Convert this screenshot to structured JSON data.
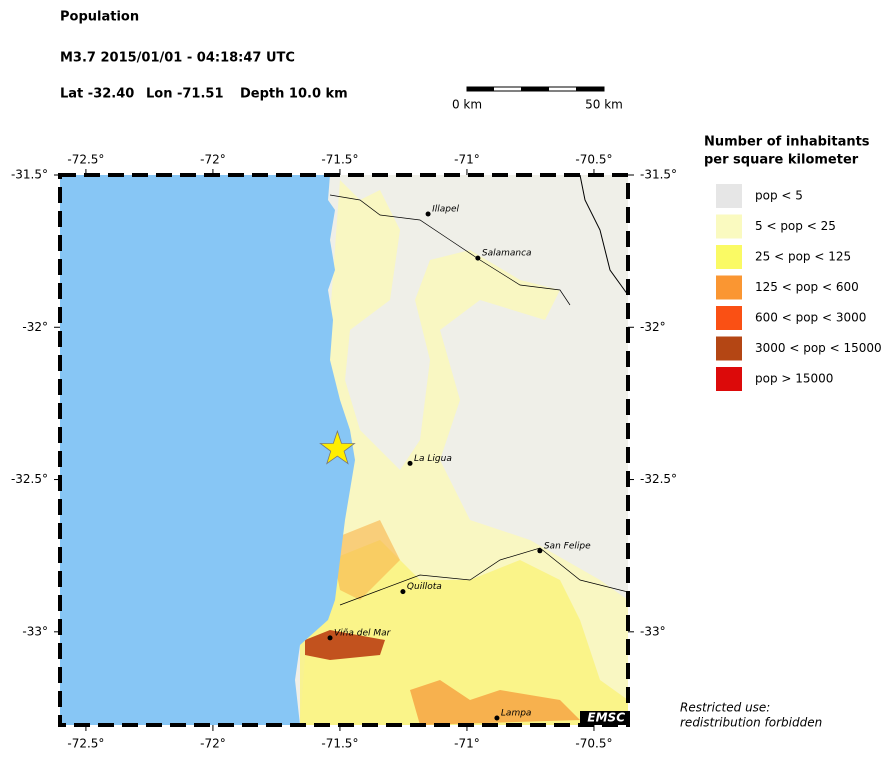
{
  "header": {
    "title": "Population",
    "event": "M3.7  2015/01/01 - 04:18:47 UTC",
    "lat": "Lat -32.40",
    "lon": "Lon -71.51",
    "depth": "Depth  10.0 km"
  },
  "scale_bar": {
    "start": "0 km",
    "end": "50 km"
  },
  "map": {
    "xlim": [
      -72.602,
      -70.366
    ],
    "ylim": [
      -33.306,
      -31.5
    ],
    "lon_ticks": [
      {
        "value": -72.5,
        "label": "-72.5°"
      },
      {
        "value": -72,
        "label": "-72°"
      },
      {
        "value": -71.5,
        "label": "-71.5°"
      },
      {
        "value": -71,
        "label": "-71°"
      },
      {
        "value": -70.5,
        "label": "-70.5°"
      }
    ],
    "lat_ticks": [
      {
        "value": -31.5,
        "label": "-31.5°"
      },
      {
        "value": -32,
        "label": "-32°"
      },
      {
        "value": -32.5,
        "label": "-32.5°"
      },
      {
        "value": -33,
        "label": "-33°"
      }
    ],
    "epicenter": {
      "lon": -71.51,
      "lat": -32.4,
      "color": "#ffee00"
    },
    "cities": [
      {
        "name": "Illapel",
        "lon": -71.153,
        "lat": -31.628
      },
      {
        "name": "Salamanca",
        "lon": -70.957,
        "lat": -31.773
      },
      {
        "name": "La Ligua",
        "lon": -71.224,
        "lat": -32.447
      },
      {
        "name": "San Felipe",
        "lon": -70.713,
        "lat": -32.734
      },
      {
        "name": "Quillota",
        "lon": -71.252,
        "lat": -32.868
      },
      {
        "name": "Viña del Mar",
        "lon": -71.539,
        "lat": -33.02
      },
      {
        "name": "Lampa",
        "lon": -70.882,
        "lat": -33.283
      }
    ],
    "credit": "EMSC"
  },
  "legend": {
    "title": [
      "Number of inhabitants",
      "per square kilometer"
    ],
    "items": [
      {
        "label": "pop < 5",
        "color": "#e6e6e6"
      },
      {
        "label": "5 < pop < 25",
        "color": "#fafac0"
      },
      {
        "label": "25 < pop < 125",
        "color": "#fafa64"
      },
      {
        "label": "125 < pop < 600",
        "color": "#fa9632"
      },
      {
        "label": "600 < pop < 3000",
        "color": "#fa5014"
      },
      {
        "label": "3000 < pop < 15000",
        "color": "#b44614"
      },
      {
        "label": "pop > 15000",
        "color": "#dc0a0a"
      }
    ]
  },
  "notice": [
    "Restricted use:",
    "redistribution forbidden"
  ]
}
